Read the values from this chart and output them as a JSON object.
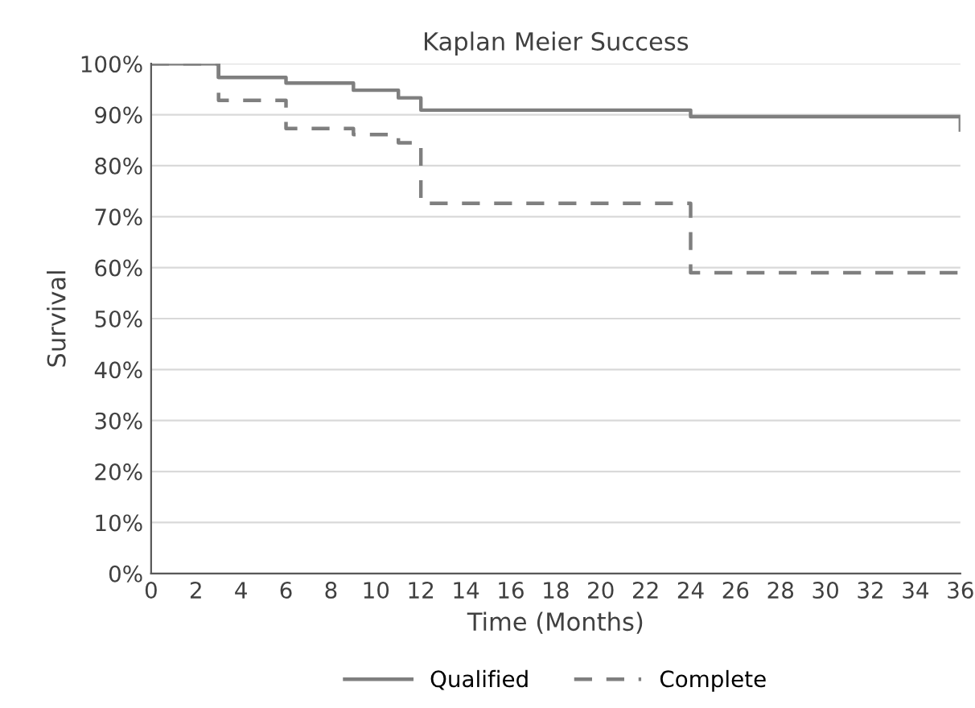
{
  "chart_data": {
    "type": "step",
    "title": "Kaplan Meier Success",
    "xlabel": "Time (Months)",
    "ylabel": "Survival",
    "series": [
      {
        "name": "Qualified",
        "color": "#7f7f7f",
        "line_style": "solid",
        "x": [
          0,
          3,
          6,
          9,
          11,
          12,
          24,
          36
        ],
        "values": [
          100,
          97.3,
          96.2,
          94.8,
          93.3,
          90.9,
          89.6,
          87
        ]
      },
      {
        "name": "Complete",
        "color": "#7f7f7f",
        "line_style": "dashed",
        "x": [
          0,
          3,
          6,
          9,
          11,
          12,
          24,
          36
        ],
        "values": [
          100,
          92.8,
          87.3,
          86.1,
          84.5,
          72.6,
          59,
          59
        ]
      }
    ],
    "xlim": [
      0,
      36
    ],
    "xticks": [
      0,
      2,
      4,
      6,
      8,
      10,
      12,
      14,
      16,
      18,
      20,
      22,
      24,
      26,
      28,
      30,
      32,
      34,
      36
    ],
    "ylim": [
      0,
      100
    ],
    "yticks": [
      {
        "value": 0,
        "label": "0%"
      },
      {
        "value": 10,
        "label": "10%"
      },
      {
        "value": 20,
        "label": "20%"
      },
      {
        "value": 30,
        "label": "30%"
      },
      {
        "value": 40,
        "label": "40%"
      },
      {
        "value": 50,
        "label": "50%"
      },
      {
        "value": 60,
        "label": "60%"
      },
      {
        "value": 70,
        "label": "70%"
      },
      {
        "value": 80,
        "label": "80%"
      },
      {
        "value": 90,
        "label": "90%"
      },
      {
        "value": 100,
        "label": "100%"
      }
    ],
    "grid": "y",
    "legend": "bottom"
  }
}
